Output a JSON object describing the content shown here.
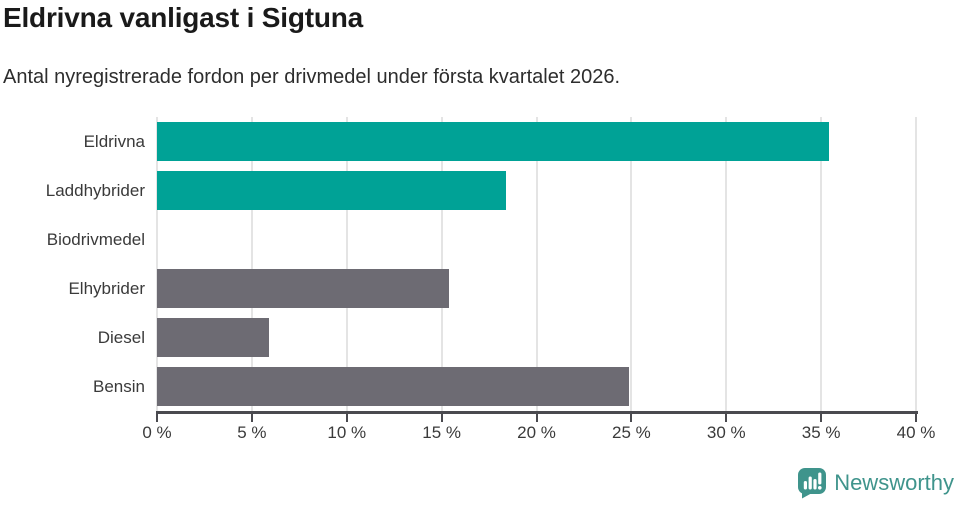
{
  "title": "Eldrivna vanligast i Sigtuna",
  "subtitle": "Antal nyregistrerade fordon per drivmedel under första kvartalet 2026.",
  "chart_data": {
    "type": "bar",
    "orientation": "horizontal",
    "title": "Eldrivna vanligast i Sigtuna",
    "subtitle": "Antal nyregistrerade fordon per drivmedel under första kvartalet 2026.",
    "categories": [
      "Eldrivna",
      "Laddhybrider",
      "Biodrivmedel",
      "Elhybrider",
      "Diesel",
      "Bensin"
    ],
    "values": [
      35.4,
      18.4,
      0,
      15.4,
      5.9,
      24.9
    ],
    "colors": [
      "#00a296",
      "#00a296",
      "#6d6b73",
      "#6d6b73",
      "#6d6b73",
      "#6d6b73"
    ],
    "highlight_color": "#00a296",
    "default_color": "#6d6b73",
    "xlabel": "",
    "ylabel": "",
    "xlim": [
      0,
      40
    ],
    "x_ticks": [
      0,
      5,
      10,
      15,
      20,
      25,
      30,
      35,
      40
    ],
    "x_tick_labels": [
      "0 %",
      "5 %",
      "10 %",
      "15 %",
      "20 %",
      "25 %",
      "30 %",
      "35 %",
      "40 %"
    ],
    "grid": true,
    "gridline_color": "#e4e4e4",
    "axis_color": "#4a4a4f",
    "legend": "none"
  },
  "branding": {
    "logo_text": "Newsworthy",
    "logo_color": "#3f948c",
    "logo_icon": "newsworthy-speech-bubble-chart-icon"
  }
}
